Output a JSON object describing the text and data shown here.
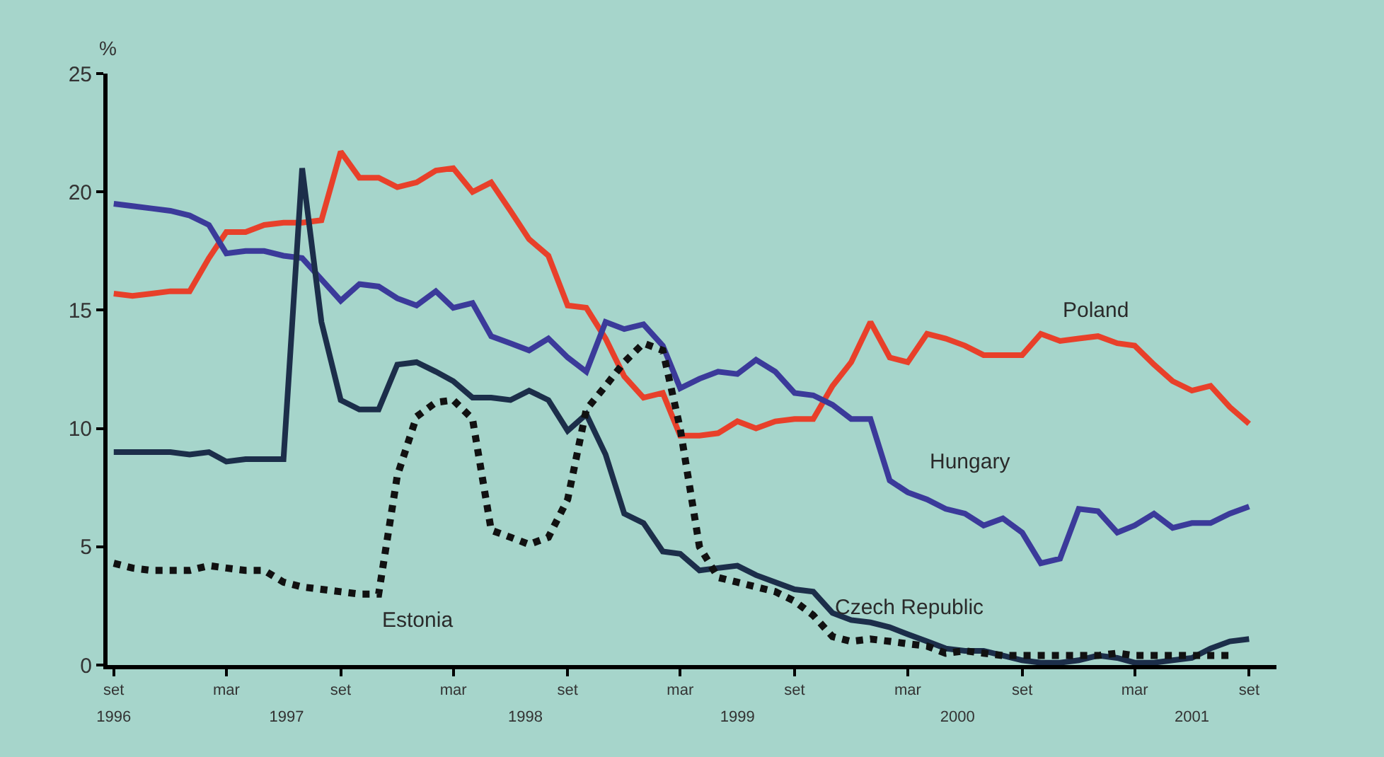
{
  "chart_data": {
    "type": "line",
    "ylabel": "%",
    "x": [
      "1996-09",
      "1996-10",
      "1996-11",
      "1996-12",
      "1997-01",
      "1997-02",
      "1997-03",
      "1997-04",
      "1997-05",
      "1997-06",
      "1997-07",
      "1997-08",
      "1997-09",
      "1997-10",
      "1997-11",
      "1997-12",
      "1998-01",
      "1998-02",
      "1998-03",
      "1998-04",
      "1998-05",
      "1998-06",
      "1998-07",
      "1998-08",
      "1998-09",
      "1998-10",
      "1998-11",
      "1998-12",
      "1999-01",
      "1999-02",
      "1999-03",
      "1999-04",
      "1999-05",
      "1999-06",
      "1999-07",
      "1999-08",
      "1999-09",
      "1999-10",
      "1999-11",
      "1999-12",
      "2000-01",
      "2000-02",
      "2000-03",
      "2000-04",
      "2000-05",
      "2000-06",
      "2000-07",
      "2000-08",
      "2000-09",
      "2000-10",
      "2000-11",
      "2000-12",
      "2001-01",
      "2001-02",
      "2001-03",
      "2001-04",
      "2001-05",
      "2001-06",
      "2001-07",
      "2001-08",
      "2001-09"
    ],
    "series": [
      {
        "name": "Poland",
        "color": "#e8402a",
        "line_style": "solid",
        "values": [
          15.7,
          15.6,
          15.7,
          15.8,
          15.8,
          17.2,
          18.3,
          18.3,
          18.6,
          18.7,
          18.7,
          18.8,
          21.7,
          20.6,
          20.6,
          20.2,
          20.4,
          20.9,
          21.0,
          20.0,
          20.4,
          19.2,
          18.0,
          17.3,
          15.2,
          15.1,
          13.8,
          12.2,
          11.3,
          11.5,
          9.7,
          9.7,
          9.8,
          10.3,
          10.0,
          10.3,
          10.4,
          10.4,
          11.8,
          12.8,
          14.5,
          13.0,
          12.8,
          14.0,
          13.8,
          13.5,
          13.1,
          13.1,
          13.1,
          14.0,
          13.7,
          13.8,
          13.9,
          13.6,
          13.5,
          12.7,
          12.0,
          11.6,
          11.8,
          10.9,
          10.2
        ]
      },
      {
        "name": "Hungary",
        "color": "#3b3a9a",
        "line_style": "solid",
        "values": [
          19.5,
          19.4,
          19.3,
          19.2,
          19.0,
          18.6,
          17.4,
          17.5,
          17.5,
          17.3,
          17.2,
          16.3,
          15.4,
          16.1,
          16.0,
          15.5,
          15.2,
          15.8,
          15.1,
          15.3,
          13.9,
          13.6,
          13.3,
          13.8,
          13.0,
          12.4,
          14.5,
          14.2,
          14.4,
          13.5,
          11.7,
          12.1,
          12.4,
          12.3,
          12.9,
          12.4,
          11.5,
          11.4,
          11.0,
          10.4,
          10.4,
          7.8,
          7.3,
          7.0,
          6.6,
          6.4,
          5.9,
          6.2,
          5.6,
          4.3,
          4.5,
          6.6,
          6.5,
          5.6,
          5.9,
          6.4,
          5.8,
          6.0,
          6.0,
          6.4,
          6.7
        ]
      },
      {
        "name": "Czech Republic",
        "color": "#1c2e4a",
        "line_style": "solid",
        "values": [
          9.0,
          9.0,
          9.0,
          9.0,
          8.9,
          9.0,
          8.6,
          8.7,
          8.7,
          8.7,
          21.0,
          14.5,
          11.2,
          10.8,
          10.8,
          12.7,
          12.8,
          12.4,
          12.0,
          11.3,
          11.3,
          11.2,
          11.6,
          11.2,
          9.9,
          10.6,
          8.9,
          6.4,
          6.0,
          4.8,
          4.7,
          4.0,
          4.1,
          4.2,
          3.8,
          3.5,
          3.2,
          3.1,
          2.2,
          1.9,
          1.8,
          1.6,
          1.3,
          1.0,
          0.7,
          0.6,
          0.6,
          0.4,
          0.2,
          0.1,
          0.1,
          0.2,
          0.4,
          0.3,
          0.1,
          0.1,
          0.2,
          0.3,
          0.7,
          1.0,
          1.1
        ]
      },
      {
        "name": "Estonia",
        "color": "#111111",
        "line_style": "dotted",
        "values": [
          4.3,
          4.1,
          4.0,
          4.0,
          4.0,
          4.2,
          4.1,
          4.0,
          4.0,
          3.5,
          3.3,
          3.2,
          3.1,
          3.0,
          3.0,
          8.0,
          10.5,
          11.1,
          11.2,
          10.4,
          5.7,
          5.4,
          5.1,
          5.4,
          7.0,
          10.8,
          11.8,
          12.8,
          13.6,
          13.3,
          10.0,
          5.0,
          3.7,
          3.5,
          3.3,
          3.1,
          2.7,
          2.1,
          1.2,
          1.0,
          1.1,
          1.0,
          0.9,
          0.8,
          0.5,
          0.6,
          0.5,
          0.4,
          0.4,
          0.4,
          0.4,
          0.4,
          0.4,
          0.5,
          0.4,
          0.4,
          0.4,
          0.4,
          0.4,
          0.4,
          null
        ]
      }
    ],
    "xlim": [
      "1996-08-22",
      "2001-10-15"
    ],
    "xticks": [
      {
        "value": "1996-09",
        "label": "set"
      },
      {
        "value": "1997-03",
        "label": "mar"
      },
      {
        "value": "1997-09",
        "label": "set"
      },
      {
        "value": "1998-03",
        "label": "mar"
      },
      {
        "value": "1998-09",
        "label": "set"
      },
      {
        "value": "1999-03",
        "label": "mar"
      },
      {
        "value": "1999-09",
        "label": "set"
      },
      {
        "value": "2000-03",
        "label": "mar"
      },
      {
        "value": "2000-09",
        "label": "set"
      },
      {
        "value": "2001-03",
        "label": "mar"
      },
      {
        "value": "2001-09",
        "label": "set"
      }
    ],
    "x2lim": [
      "1996-08-22",
      "2001-10-15"
    ],
    "x2ticks": [
      {
        "value": "1996-09",
        "label": "1996"
      },
      {
        "value": "1997-06-06",
        "label": "1997"
      },
      {
        "value": "1998-06-25",
        "label": "1998"
      },
      {
        "value": "1999-06",
        "label": "1999"
      },
      {
        "value": "2000-05-20",
        "label": "2000"
      },
      {
        "value": "2001-06",
        "label": "2001"
      }
    ],
    "ylim": [
      0,
      25
    ],
    "yticks": [
      0,
      5,
      10,
      15,
      20,
      25
    ],
    "grid": false,
    "legend": false,
    "marker": "none"
  }
}
